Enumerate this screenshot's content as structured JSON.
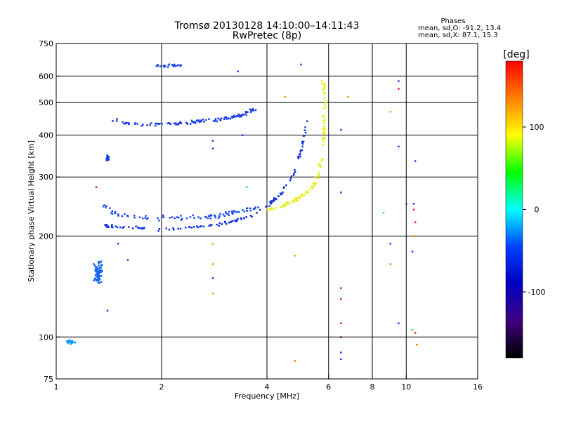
{
  "chart_data": {
    "type": "scatter",
    "title": "Tromsø 20130128 14:10:00–14:11:43",
    "subtitle": "RwPretec (8p)",
    "xlabel": "Frequency [MHz]",
    "ylabel": "Stationary phase Virtual Height [km]",
    "x_scale": "log",
    "y_scale": "log",
    "xlim": [
      1,
      16
    ],
    "ylim": [
      75,
      750
    ],
    "x_ticks": [
      1,
      2,
      4,
      6,
      8,
      10,
      16
    ],
    "y_ticks": [
      75,
      100,
      200,
      300,
      400,
      500,
      600,
      750
    ],
    "x_tick_labels": [
      "1",
      "2",
      "4",
      "6",
      "8",
      "10",
      "16"
    ],
    "y_tick_labels": [
      "75",
      "100",
      "200",
      "300",
      "400",
      "500",
      "600",
      "750"
    ],
    "x_gridlines": [
      1,
      2,
      4,
      6,
      8,
      10,
      16
    ],
    "y_gridlines": [
      100,
      200,
      300,
      400,
      500,
      600
    ],
    "grid": true,
    "phase_stats": {
      "heading": "Phases",
      "line_o": "mean, sd,O: -91.2, 13.4",
      "line_x": "mean, sd,X:  87.1, 15.3"
    },
    "colorbar": {
      "label": "[deg]",
      "min": -180,
      "max": 180,
      "ticks": [
        100,
        0,
        -100
      ],
      "tick_labels": [
        "100",
        "0",
        "-100"
      ],
      "colors": [
        "#ff0000",
        "#ff8000",
        "#ffff00",
        "#00ff00",
        "#00ffff",
        "#0040ff",
        "#0000c0",
        "#400080",
        "#000000"
      ]
    },
    "series": [
      {
        "kind": "curve",
        "color": "#1030e0",
        "jitter": 3,
        "count": 130,
        "points": [
          [
            1.38,
            215
          ],
          [
            1.6,
            212
          ],
          [
            2.0,
            210
          ],
          [
            2.4,
            212
          ],
          [
            2.8,
            216
          ],
          [
            3.2,
            222
          ],
          [
            3.6,
            230
          ],
          [
            4.0,
            245
          ],
          [
            4.4,
            270
          ],
          [
            4.8,
            310
          ],
          [
            5.0,
            360
          ],
          [
            5.2,
            440
          ]
        ]
      },
      {
        "kind": "curve",
        "color": "#1848f0",
        "jitter": 5,
        "count": 90,
        "points": [
          [
            1.38,
            245
          ],
          [
            1.5,
            232
          ],
          [
            1.8,
            228
          ],
          [
            2.2,
            226
          ],
          [
            2.6,
            228
          ],
          [
            3.0,
            232
          ],
          [
            3.4,
            238
          ],
          [
            3.8,
            244
          ]
        ]
      },
      {
        "kind": "curve",
        "color": "#e8f020",
        "jitter": 4,
        "count": 120,
        "points": [
          [
            4.0,
            238
          ],
          [
            4.4,
            245
          ],
          [
            4.8,
            255
          ],
          [
            5.2,
            270
          ],
          [
            5.5,
            290
          ],
          [
            5.7,
            330
          ],
          [
            5.8,
            400
          ],
          [
            5.85,
            500
          ],
          [
            5.8,
            580
          ]
        ]
      },
      {
        "kind": "curve",
        "color": "#1a3ae8",
        "jitter": 4,
        "count": 110,
        "points": [
          [
            1.4,
            450
          ],
          [
            1.6,
            432
          ],
          [
            1.9,
            430
          ],
          [
            2.2,
            432
          ],
          [
            2.5,
            440
          ],
          [
            2.8,
            445
          ],
          [
            3.1,
            450
          ],
          [
            3.4,
            460
          ],
          [
            3.7,
            480
          ]
        ]
      },
      {
        "kind": "cluster",
        "color": "#1060f0",
        "cx": 1.32,
        "cy": 155,
        "sx": 0.05,
        "sy": 18,
        "count": 60
      },
      {
        "kind": "cluster",
        "color": "#1040e0",
        "cx": 1.4,
        "cy": 340,
        "sx": 0.02,
        "sy": 10,
        "count": 30
      },
      {
        "kind": "cluster",
        "color": "#10a0f0",
        "cx": 1.1,
        "cy": 97,
        "sx": 0.04,
        "sy": 2,
        "count": 25
      },
      {
        "kind": "cluster",
        "color": "#2050e0",
        "cx": 2.1,
        "cy": 645,
        "sx": 0.25,
        "sy": 8,
        "count": 25
      }
    ],
    "scatter_points": [
      [
        6.5,
        415,
        "#2040e0"
      ],
      [
        6.5,
        270,
        "#2040e0"
      ],
      [
        6.5,
        140,
        "#e02020"
      ],
      [
        6.5,
        130,
        "#e02020"
      ],
      [
        6.5,
        110,
        "#e02020"
      ],
      [
        6.5,
        100,
        "#800040"
      ],
      [
        6.5,
        90,
        "#2040e0"
      ],
      [
        6.5,
        86,
        "#2040e0"
      ],
      [
        9.5,
        580,
        "#2040e0"
      ],
      [
        9.5,
        550,
        "#e02020"
      ],
      [
        9.5,
        370,
        "#2040e0"
      ],
      [
        9.5,
        110,
        "#2040e0"
      ],
      [
        9.0,
        470,
        "#f0a000"
      ],
      [
        9.0,
        190,
        "#2040e0"
      ],
      [
        9.0,
        165,
        "#f08000"
      ],
      [
        8.6,
        235,
        "#40e040"
      ],
      [
        10.0,
        250,
        "#2040e0"
      ],
      [
        10.6,
        335,
        "#2040e0"
      ],
      [
        10.5,
        250,
        "#2040e0"
      ],
      [
        10.5,
        240,
        "#e02020"
      ],
      [
        10.6,
        220,
        "#e02020"
      ],
      [
        10.6,
        200,
        "#f08000"
      ],
      [
        10.4,
        180,
        "#2040e0"
      ],
      [
        10.4,
        105,
        "#40e040"
      ],
      [
        10.7,
        95,
        "#f08000"
      ],
      [
        10.6,
        103,
        "#e02020"
      ],
      [
        4.8,
        175,
        "#f0a000"
      ],
      [
        4.8,
        85,
        "#f08000"
      ],
      [
        5.0,
        650,
        "#2040e0"
      ],
      [
        3.3,
        620,
        "#2040e0"
      ],
      [
        2.8,
        385,
        "#2040e0"
      ],
      [
        2.8,
        365,
        "#2040e0"
      ],
      [
        2.8,
        190,
        "#f0a000"
      ],
      [
        2.8,
        165,
        "#f0a000"
      ],
      [
        2.8,
        150,
        "#2040e0"
      ],
      [
        2.8,
        135,
        "#f0a000"
      ],
      [
        1.5,
        190,
        "#2040e0"
      ],
      [
        1.4,
        120,
        "#2040e0"
      ],
      [
        1.6,
        170,
        "#2040e0"
      ],
      [
        6.8,
        520,
        "#f0a000"
      ],
      [
        3.5,
        280,
        "#20c0f0"
      ],
      [
        3.4,
        400,
        "#2040e0"
      ],
      [
        1.3,
        280,
        "#e02020"
      ],
      [
        4.5,
        520,
        "#f0a000"
      ]
    ]
  }
}
